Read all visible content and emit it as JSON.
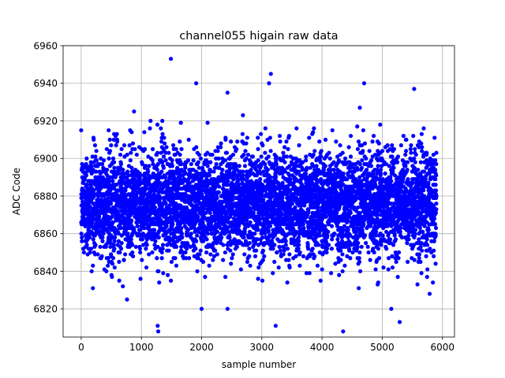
{
  "chart_data": {
    "type": "scatter",
    "title": "channel055 higain raw data",
    "xlabel": "sample number",
    "ylabel": "ADC Code",
    "xlim": [
      -300,
      6200
    ],
    "ylim": [
      6805,
      6960
    ],
    "xticks": [
      0,
      1000,
      2000,
      3000,
      4000,
      5000,
      6000
    ],
    "yticks": [
      6820,
      6840,
      6860,
      6880,
      6900,
      6920,
      6940,
      6960
    ],
    "grid": true,
    "series": [
      {
        "color": "#0000ff",
        "marker": "circle",
        "n_points": 5900,
        "x_range": [
          0,
          5900
        ],
        "mean": 6876,
        "std": 14,
        "notable_points": [
          {
            "x": 1490,
            "y": 6953
          },
          {
            "x": 3150,
            "y": 6945
          },
          {
            "x": 4700,
            "y": 6940
          },
          {
            "x": 1910,
            "y": 6940
          },
          {
            "x": 3120,
            "y": 6940
          },
          {
            "x": 5530,
            "y": 6937
          },
          {
            "x": 2430,
            "y": 6935
          },
          {
            "x": 1280,
            "y": 6808
          },
          {
            "x": 1270,
            "y": 6811
          },
          {
            "x": 3230,
            "y": 6811
          },
          {
            "x": 4350,
            "y": 6808
          },
          {
            "x": 5290,
            "y": 6813
          },
          {
            "x": 2000,
            "y": 6820
          },
          {
            "x": 2430,
            "y": 6820
          },
          {
            "x": 5150,
            "y": 6820
          }
        ]
      }
    ]
  }
}
